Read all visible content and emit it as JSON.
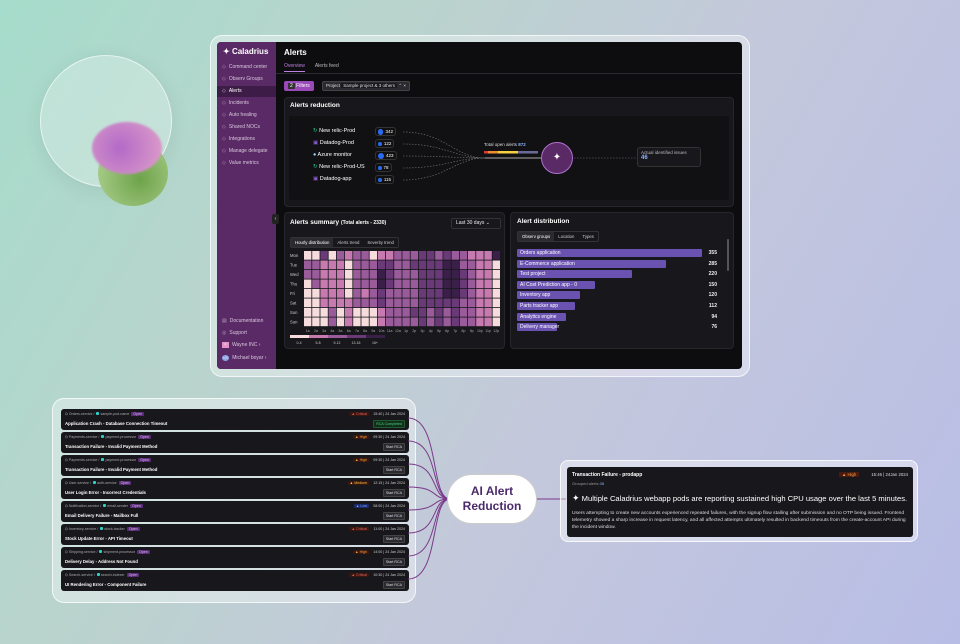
{
  "app": {
    "name": "Caladrius",
    "page_title": "Alerts",
    "tabs": [
      "Overview",
      "Alerts feed"
    ],
    "active_tab": 0
  },
  "sidebar": {
    "items": [
      {
        "label": "Command center",
        "icon": "grid-icon"
      },
      {
        "label": "Observ Groups",
        "icon": "gear-icon"
      },
      {
        "label": "Alerts",
        "icon": "bell-icon"
      },
      {
        "label": "Incidents",
        "icon": "warning-icon"
      },
      {
        "label": "Auto healing",
        "icon": "heal-icon"
      },
      {
        "label": "Shared NOCs",
        "icon": "share-icon"
      },
      {
        "label": "Integrations",
        "icon": "link-icon"
      },
      {
        "label": "Manage delegate",
        "icon": "x-icon"
      },
      {
        "label": "Value metrics",
        "icon": "chart-icon"
      }
    ],
    "active": 2,
    "footer": [
      {
        "label": "Documentation"
      },
      {
        "label": "Support"
      }
    ],
    "org": "Wayne INC",
    "user": "Michael boyar",
    "user_initials": "MB"
  },
  "filters": {
    "count": "2",
    "label": "Filters",
    "project_label": "Project",
    "project_value": "Sample project & 3 others"
  },
  "reduction": {
    "title": "Alerts reduction",
    "sources": [
      {
        "name": "New relic-Prod",
        "count": "342"
      },
      {
        "name": "Datadog-Prod",
        "count": "122"
      },
      {
        "name": "Azure monitor",
        "count": "423"
      },
      {
        "name": "New relic-Prod-US",
        "count": "78"
      },
      {
        "name": "Datadog-app",
        "count": "115"
      }
    ],
    "total_label": "Total open alerts",
    "total": "872",
    "issues_label": "Actual identified issues",
    "issues": "46"
  },
  "summary": {
    "title": "Alerts summary",
    "total_label": "(Total alerts - 2330)",
    "range": "Last 30 days",
    "tabs": [
      "Hourly distribution",
      "Alerts trend",
      "Severity trend"
    ],
    "active_tab": 0,
    "chart_data": {
      "type": "heatmap",
      "rows": [
        "Mon",
        "Tue",
        "Wed",
        "Thu",
        "Fri",
        "Sat",
        "Sun",
        "Sun"
      ],
      "columns": [
        "1a",
        "2a",
        "3a",
        "4a",
        "5a",
        "6a",
        "7a",
        "8a",
        "9a",
        "10a",
        "11a",
        "12a",
        "1p",
        "2p",
        "3p",
        "4p",
        "5p",
        "6p",
        "7p",
        "8p",
        "9p",
        "10p",
        "11p",
        "12p"
      ],
      "levels": [
        [
          0,
          0,
          3,
          0,
          2,
          1,
          2,
          2,
          0,
          1,
          1,
          2,
          2,
          2,
          3,
          3,
          2,
          3,
          2,
          2,
          1,
          1,
          1,
          4
        ],
        [
          2,
          2,
          1,
          1,
          1,
          0,
          2,
          2,
          2,
          3,
          3,
          2,
          2,
          3,
          3,
          3,
          3,
          4,
          4,
          2,
          2,
          1,
          1,
          0
        ],
        [
          2,
          2,
          1,
          1,
          1,
          0,
          2,
          2,
          2,
          4,
          3,
          2,
          2,
          2,
          3,
          3,
          3,
          4,
          4,
          3,
          2,
          1,
          1,
          0
        ],
        [
          0,
          2,
          1,
          1,
          1,
          0,
          2,
          2,
          2,
          4,
          3,
          2,
          2,
          2,
          3,
          3,
          3,
          4,
          4,
          3,
          2,
          1,
          1,
          0
        ],
        [
          0,
          0,
          1,
          1,
          1,
          0,
          2,
          1,
          2,
          3,
          2,
          2,
          2,
          2,
          3,
          3,
          3,
          4,
          4,
          3,
          2,
          1,
          1,
          0
        ],
        [
          0,
          0,
          1,
          1,
          1,
          1,
          2,
          2,
          2,
          3,
          2,
          2,
          2,
          2,
          3,
          3,
          3,
          3,
          3,
          2,
          2,
          1,
          1,
          0
        ],
        [
          0,
          0,
          0,
          2,
          0,
          1,
          0,
          0,
          0,
          1,
          2,
          2,
          2,
          3,
          3,
          2,
          3,
          2,
          3,
          2,
          2,
          1,
          1,
          0
        ],
        [
          0,
          0,
          0,
          2,
          0,
          1,
          0,
          0,
          0,
          1,
          2,
          2,
          2,
          2,
          3,
          2,
          3,
          2,
          3,
          2,
          2,
          1,
          1,
          0
        ]
      ],
      "legend": [
        "0-4",
        "5-8",
        "9-12",
        "13-16",
        "16+"
      ],
      "colors": [
        "#f6dcdc",
        "#c77ab0",
        "#9a5b9a",
        "#6a3a78",
        "#3a1f48"
      ]
    }
  },
  "distribution": {
    "title": "Alert distribution",
    "tabs": [
      "Observ groups",
      "Location",
      "Types"
    ],
    "active_tab": 0,
    "chart_data": {
      "type": "bar",
      "categories": [
        "Orders application",
        "E-Commerce application",
        "Test project",
        "AI Cost Prediction app - 0",
        "Inventory app",
        "Parts tracker app",
        "Analytics engine",
        "Delivery manager"
      ],
      "values": [
        355,
        285,
        220,
        150,
        120,
        112,
        94,
        76
      ]
    }
  },
  "alerts": [
    {
      "service": "Orders-service",
      "component": "sample-pod-name",
      "status": "Open",
      "severity": "Critical",
      "time": "15:40 | 24 Jan 2024",
      "title": "Application Crash - Database Connection Timeout",
      "action": "RCA Completed"
    },
    {
      "service": "Payments-service",
      "component": "payment-processor",
      "status": "Open",
      "severity": "High",
      "time": "09:30 | 24 Jan 2024",
      "title": "Transaction Failure - Invalid Payment Method",
      "action": "Start RCA"
    },
    {
      "service": "Payments-service",
      "component": "payment-processor",
      "status": "Open",
      "severity": "High",
      "time": "09:30 | 24 Jan 2024",
      "title": "Transaction Failure - Invalid Payment Method",
      "action": "Start RCA"
    },
    {
      "service": "User-service",
      "component": "auth-service",
      "status": "Open",
      "severity": "Medium",
      "time": "12:15 | 24 Jan 2024",
      "title": "User Login Error - Incorrect Credentials",
      "action": "Start RCA"
    },
    {
      "service": "Notification-service",
      "component": "email-sender",
      "status": "Open",
      "severity": "Low",
      "time": "08:00 | 24 Jan 2024",
      "title": "Email Delivery Failure - Mailbox Full",
      "action": "Start RCA"
    },
    {
      "service": "Inventory-service",
      "component": "stock-tracker",
      "status": "Open",
      "severity": "Critical",
      "time": "11:00 | 24 Jan 2024",
      "title": "Stock Update Error - API Timeout",
      "action": "Start RCA"
    },
    {
      "service": "Shipping-service",
      "component": "shipment-processor",
      "status": "Open",
      "severity": "High",
      "time": "14:00 | 24 Jan 2024",
      "title": "Delivery Delay - Address Not Found",
      "action": "Start RCA"
    },
    {
      "service": "Search-service",
      "component": "search-indexer",
      "status": "Open",
      "severity": "Critical",
      "time": "10:30 | 24 Jan 2024",
      "title": "UI Rendering Error - Component Failure",
      "action": "Start RCA"
    }
  ],
  "severity_colors": {
    "Critical": "#e0605a",
    "High": "#f0a040",
    "Medium": "#f5c040",
    "Low": "#7aa0ff"
  },
  "pill": {
    "line1": "AI Alert",
    "line2": "Reduction"
  },
  "incident": {
    "title": "Transaction Failure - prodapp",
    "severity": "High",
    "time": "15:46 | 24Jan 2024",
    "grouped_label": "Grouped alerts",
    "grouped": "08",
    "headline": "Multiple Caladrius webapp pods are reporting sustained high CPU usage over the last 5 minutes.",
    "body": "Users attempting to create new accounts experienced repeated failures, with the signup flow stalling after submission and no OTP being issued. Frontend telemetry showed a sharp increase in request latency, and all affected attempts ultimately resulted in backend timeouts from the create-account API during the incident window."
  }
}
